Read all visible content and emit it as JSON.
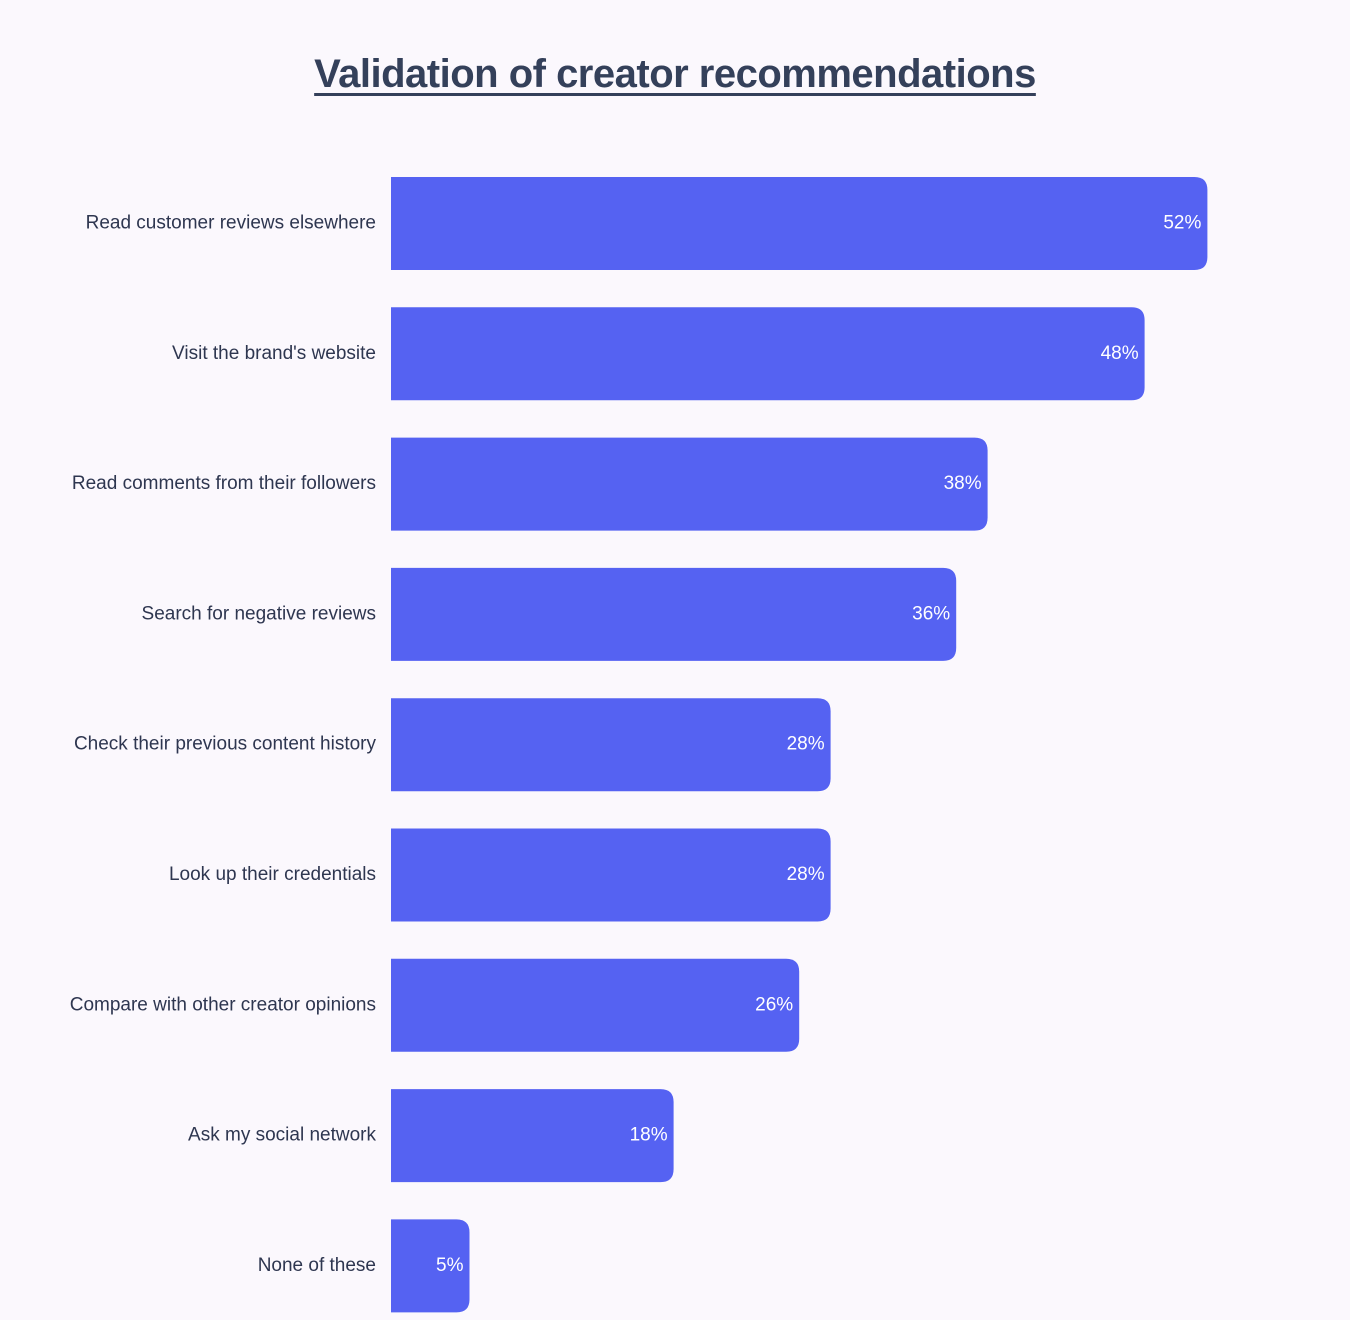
{
  "chart_data": {
    "type": "bar",
    "orientation": "horizontal",
    "title": "Validation of creator recommendations",
    "categories": [
      "Read customer reviews elsewhere",
      "Visit the brand's website",
      "Read comments from their followers",
      "Search for negative reviews",
      "Check their previous content history",
      "Look up their credentials",
      "Compare with other creator opinions",
      "Ask my social network",
      "None of these"
    ],
    "values": [
      52,
      48,
      38,
      36,
      28,
      28,
      26,
      18,
      5
    ],
    "value_labels": [
      "52%",
      "48%",
      "38%",
      "36%",
      "28%",
      "28%",
      "26%",
      "18%",
      "5%"
    ],
    "unit": "%",
    "grid": false,
    "legend": "none",
    "bar_color": "#5562f2"
  }
}
